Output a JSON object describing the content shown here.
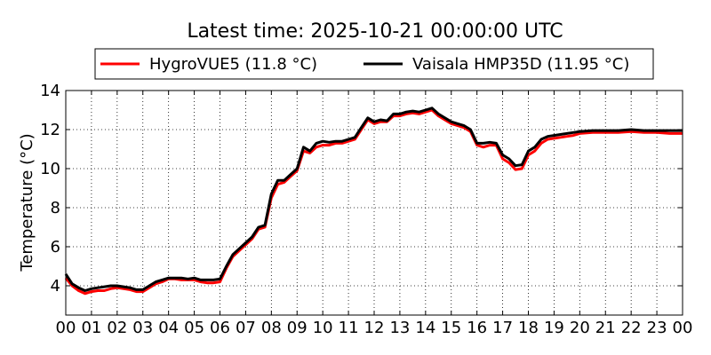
{
  "chart_data": {
    "type": "line",
    "title": "Latest time: 2025-10-21 00:00:00 UTC",
    "ylabel": "Temperature (°C)",
    "xlabel": "",
    "xlim": [
      0,
      24
    ],
    "ylim": [
      2.5,
      14
    ],
    "x_ticks": [
      "00",
      "01",
      "02",
      "03",
      "04",
      "05",
      "06",
      "07",
      "08",
      "09",
      "10",
      "11",
      "12",
      "13",
      "14",
      "15",
      "16",
      "17",
      "18",
      "19",
      "20",
      "21",
      "22",
      "23",
      "00"
    ],
    "y_ticks": [
      4,
      6,
      8,
      10,
      12,
      14
    ],
    "grid": true,
    "legend_position": "top",
    "series": [
      {
        "name": "HygroVUE5 (11.8 °C)",
        "color": "#ff0000",
        "x": [
          0,
          0.25,
          0.5,
          0.75,
          1,
          1.25,
          1.5,
          1.75,
          2,
          2.25,
          2.5,
          2.75,
          3,
          3.25,
          3.5,
          3.75,
          4,
          4.25,
          4.5,
          4.75,
          5,
          5.25,
          5.5,
          5.75,
          6,
          6.25,
          6.5,
          6.75,
          7,
          7.25,
          7.5,
          7.75,
          8,
          8.25,
          8.5,
          8.75,
          9,
          9.25,
          9.5,
          9.75,
          10,
          10.25,
          10.5,
          10.75,
          11,
          11.25,
          11.5,
          11.75,
          12,
          12.25,
          12.5,
          12.75,
          13,
          13.25,
          13.5,
          13.75,
          14,
          14.25,
          14.5,
          14.75,
          15,
          15.25,
          15.5,
          15.75,
          16,
          16.25,
          16.5,
          16.75,
          17,
          17.25,
          17.5,
          17.75,
          18,
          18.25,
          18.5,
          18.75,
          19,
          19.25,
          19.5,
          19.75,
          20,
          20.5,
          21,
          21.5,
          22,
          22.5,
          23,
          23.5,
          24
        ],
        "values": [
          4.4,
          4.0,
          3.75,
          3.6,
          3.7,
          3.75,
          3.75,
          3.85,
          3.9,
          3.85,
          3.8,
          3.7,
          3.7,
          3.9,
          4.1,
          4.2,
          4.35,
          4.35,
          4.3,
          4.3,
          4.3,
          4.2,
          4.15,
          4.15,
          4.2,
          4.9,
          5.5,
          5.8,
          6.1,
          6.4,
          6.9,
          7.0,
          8.5,
          9.2,
          9.3,
          9.6,
          9.9,
          10.9,
          10.8,
          11.1,
          11.2,
          11.2,
          11.3,
          11.3,
          11.4,
          11.5,
          12.0,
          12.5,
          12.3,
          12.4,
          12.4,
          12.7,
          12.7,
          12.8,
          12.85,
          12.8,
          12.9,
          13.0,
          12.7,
          12.5,
          12.3,
          12.2,
          12.1,
          11.9,
          11.2,
          11.1,
          11.2,
          11.2,
          10.5,
          10.3,
          9.95,
          10.0,
          10.7,
          10.9,
          11.3,
          11.5,
          11.55,
          11.6,
          11.65,
          11.7,
          11.8,
          11.85,
          11.85,
          11.85,
          11.9,
          11.85,
          11.85,
          11.8,
          11.8
        ]
      },
      {
        "name": "Vaisala HMP35D (11.95 °C)",
        "color": "#000000",
        "x": [
          0,
          0.25,
          0.5,
          0.75,
          1,
          1.25,
          1.5,
          1.75,
          2,
          2.25,
          2.5,
          2.75,
          3,
          3.25,
          3.5,
          3.75,
          4,
          4.25,
          4.5,
          4.75,
          5,
          5.25,
          5.5,
          5.75,
          6,
          6.25,
          6.5,
          6.75,
          7,
          7.25,
          7.5,
          7.75,
          8,
          8.25,
          8.5,
          8.75,
          9,
          9.25,
          9.5,
          9.75,
          10,
          10.25,
          10.5,
          10.75,
          11,
          11.25,
          11.5,
          11.75,
          12,
          12.25,
          12.5,
          12.75,
          13,
          13.25,
          13.5,
          13.75,
          14,
          14.25,
          14.5,
          14.75,
          15,
          15.25,
          15.5,
          15.75,
          16,
          16.25,
          16.5,
          16.75,
          17,
          17.25,
          17.5,
          17.75,
          18,
          18.25,
          18.5,
          18.75,
          19,
          19.25,
          19.5,
          19.75,
          20,
          20.5,
          21,
          21.5,
          22,
          22.5,
          23,
          23.5,
          24
        ],
        "values": [
          4.6,
          4.1,
          3.9,
          3.75,
          3.85,
          3.9,
          3.95,
          4.0,
          4.0,
          3.95,
          3.9,
          3.8,
          3.8,
          4.0,
          4.2,
          4.3,
          4.4,
          4.4,
          4.4,
          4.35,
          4.4,
          4.3,
          4.3,
          4.3,
          4.35,
          5.0,
          5.6,
          5.9,
          6.2,
          6.5,
          7.0,
          7.1,
          8.7,
          9.4,
          9.4,
          9.7,
          10.0,
          11.1,
          10.9,
          11.3,
          11.4,
          11.35,
          11.4,
          11.4,
          11.5,
          11.6,
          12.1,
          12.6,
          12.4,
          12.5,
          12.45,
          12.8,
          12.8,
          12.9,
          12.95,
          12.9,
          13.0,
          13.1,
          12.8,
          12.6,
          12.4,
          12.3,
          12.2,
          12.0,
          11.3,
          11.3,
          11.35,
          11.3,
          10.7,
          10.5,
          10.15,
          10.2,
          10.9,
          11.1,
          11.5,
          11.65,
          11.7,
          11.75,
          11.8,
          11.85,
          11.9,
          11.95,
          11.95,
          11.95,
          12.0,
          11.95,
          11.95,
          11.95,
          11.95
        ]
      }
    ]
  }
}
